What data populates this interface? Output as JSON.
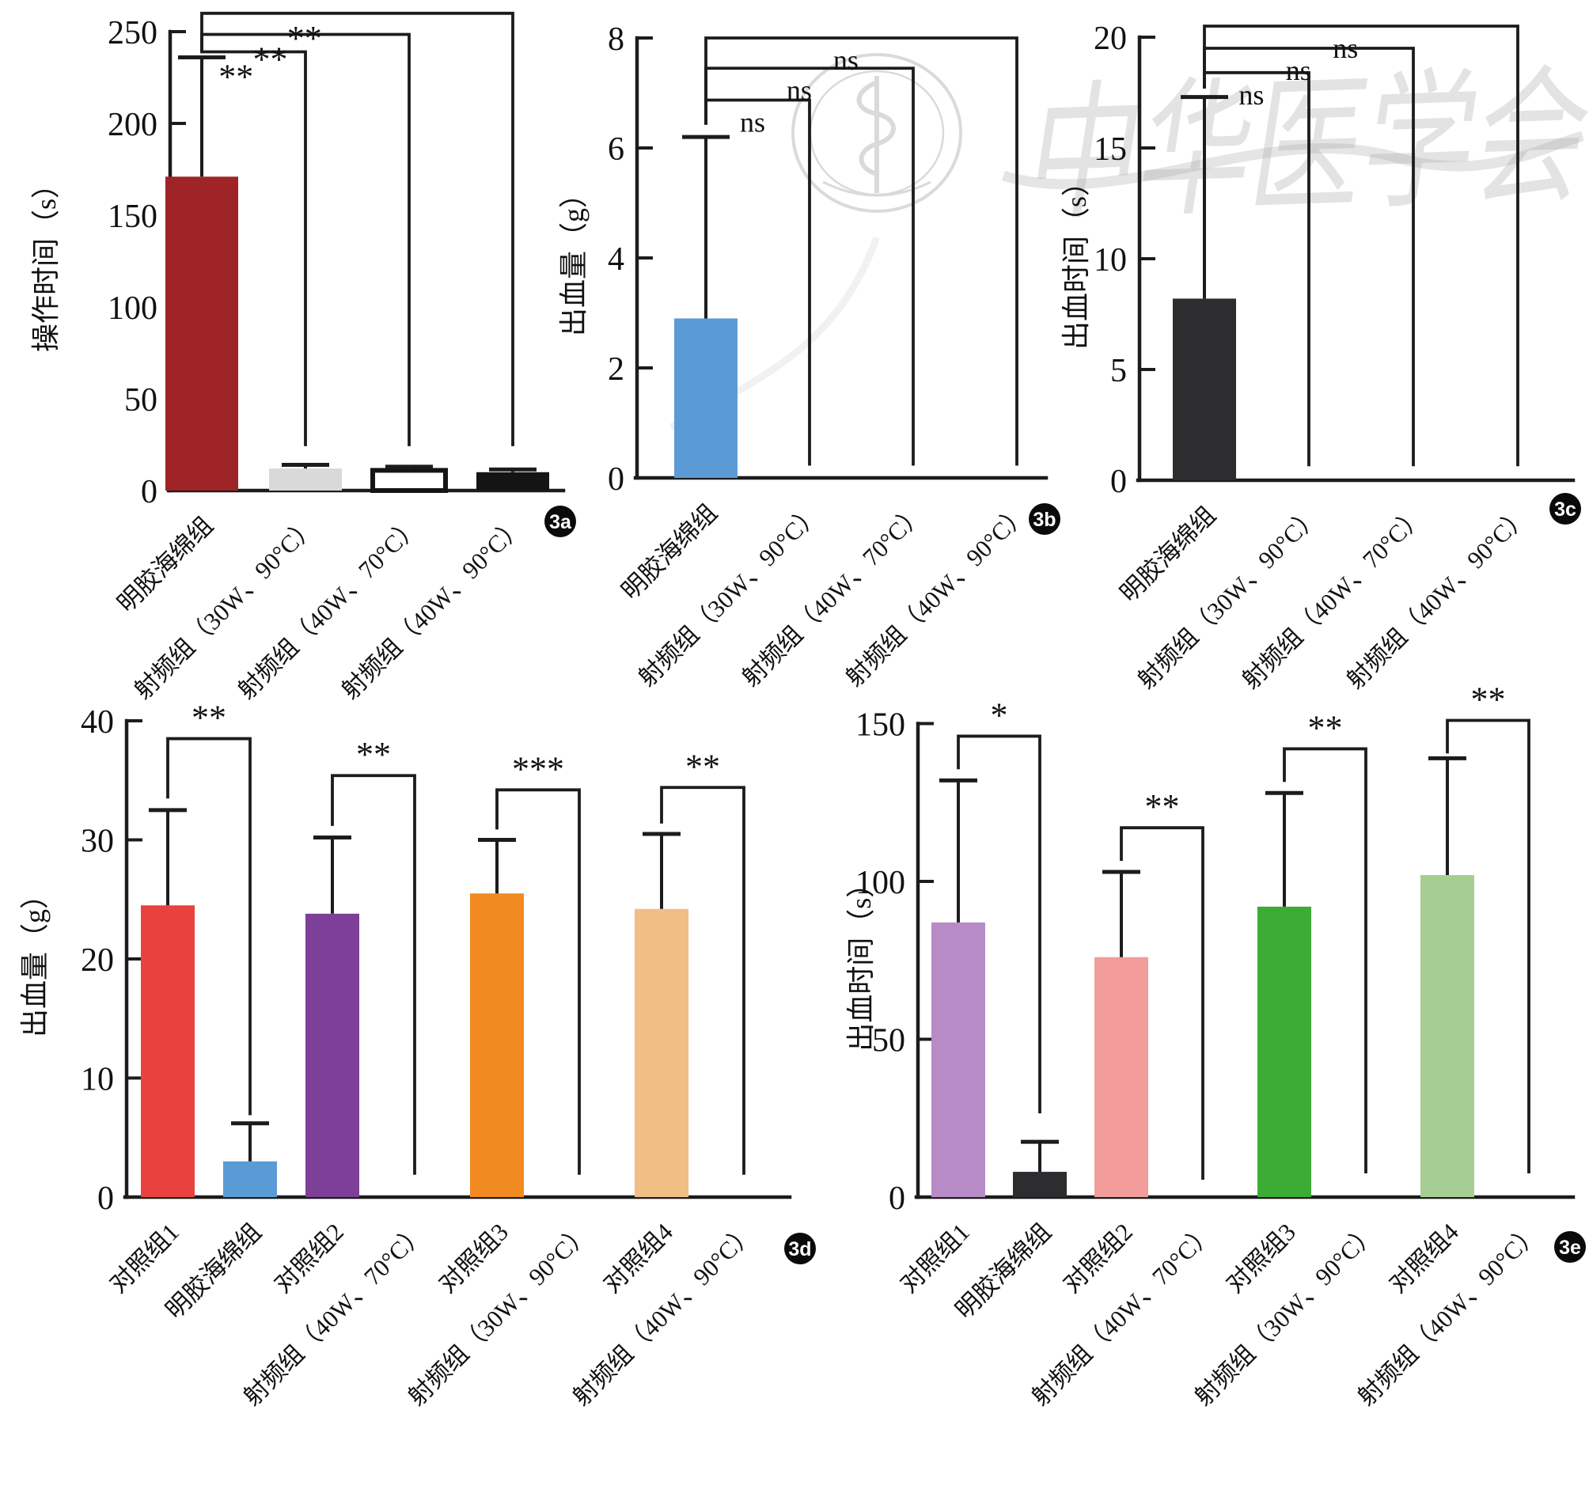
{
  "watermark": {
    "text": "中华医学会"
  },
  "chart_data": [
    {
      "id": "3a",
      "type": "bar",
      "ylabel": "操作时间（s）",
      "xlabel": "",
      "ylim": [
        0,
        250
      ],
      "yticks": [
        0,
        50,
        100,
        150,
        200,
        250
      ],
      "grid": false,
      "legend_position": "none",
      "categories": [
        "明胶海绵组",
        "射频组（30W、90°C）",
        "射频组（40W、70°C）",
        "射频组（40W、90°C）"
      ],
      "values": [
        171,
        12,
        11,
        10
      ],
      "error_tops": [
        236,
        14,
        13,
        11.5
      ],
      "colors": [
        "#9e2428",
        "#d9d9d9",
        "#ffffff",
        "#141414"
      ],
      "borders": [
        false,
        false,
        true,
        false
      ],
      "significance": [
        {
          "pair": [
            0,
            1
          ],
          "label": "**",
          "y": 239,
          "left_stop": 240,
          "right_stop": 25
        },
        {
          "pair": [
            0,
            2
          ],
          "label": "**",
          "y": 248.5,
          "left_stop": 240,
          "right_stop": 25
        },
        {
          "pair": [
            0,
            3
          ],
          "label": "**",
          "y": 260,
          "left_stop": 240,
          "right_stop": 25
        }
      ]
    },
    {
      "id": "3b",
      "type": "bar",
      "ylabel": "出血量（g）",
      "xlabel": "",
      "ylim": [
        0,
        8
      ],
      "yticks": [
        0,
        2,
        4,
        6,
        8
      ],
      "grid": false,
      "legend_position": "none",
      "categories": [
        "明胶海绵组",
        "射频组（30W、90°C）",
        "射频组（40W、70°C）",
        "射频组（40W、90°C）"
      ],
      "values": [
        2.9,
        0,
        0,
        0
      ],
      "error_tops": [
        6.2,
        null,
        null,
        null
      ],
      "colors": [
        "#5b9bd5",
        "",
        "",
        ""
      ],
      "borders": [
        false,
        false,
        false,
        false
      ],
      "significance": [
        {
          "pair": [
            0,
            1
          ],
          "label": "ns",
          "y": 6.87,
          "left_stop": 6.45,
          "right_stop": 0.25
        },
        {
          "pair": [
            0,
            2
          ],
          "label": "ns",
          "y": 7.45,
          "left_stop": 6.45,
          "right_stop": 0.25
        },
        {
          "pair": [
            0,
            3
          ],
          "label": "ns",
          "y": 8.0,
          "left_stop": 6.45,
          "right_stop": 0.25
        }
      ]
    },
    {
      "id": "3c",
      "type": "bar",
      "ylabel": "出血时间（s）",
      "xlabel": "",
      "ylim": [
        0,
        20
      ],
      "yticks": [
        0,
        5,
        10,
        15,
        20
      ],
      "grid": false,
      "legend_position": "none",
      "categories": [
        "明胶海绵组",
        "射频组（30W、90°C）",
        "射频组（40W、70°C）",
        "射频组（40W、90°C）"
      ],
      "values": [
        8.2,
        0,
        0,
        0
      ],
      "error_tops": [
        17.3,
        null,
        null,
        null
      ],
      "colors": [
        "#2d2d2f",
        "",
        "",
        ""
      ],
      "borders": [
        false,
        false,
        false,
        false
      ],
      "significance": [
        {
          "pair": [
            0,
            1
          ],
          "label": "ns",
          "y": 18.4,
          "left_stop": 17.75,
          "right_stop": 0.7
        },
        {
          "pair": [
            0,
            2
          ],
          "label": "ns",
          "y": 19.5,
          "left_stop": 17.75,
          "right_stop": 0.7
        },
        {
          "pair": [
            0,
            3
          ],
          "label": "ns",
          "y": 20.5,
          "left_stop": 17.75,
          "right_stop": 0.7
        }
      ]
    },
    {
      "id": "3d",
      "type": "bar",
      "ylabel": "出血量（g）",
      "xlabel": "",
      "ylim": [
        0,
        40
      ],
      "yticks": [
        0,
        10,
        20,
        30,
        40
      ],
      "grid": false,
      "legend_position": "none",
      "categories": [
        "对照组1",
        "明胶海绵组",
        "对照组2",
        "射频组（40W、70°C）",
        "对照组3",
        "射频组（30W、90°C）",
        "对照组4",
        "射频组（40W、90°C）"
      ],
      "values": [
        24.5,
        3,
        23.8,
        0,
        25.5,
        0,
        24.2,
        0
      ],
      "error_tops": [
        32.5,
        6.2,
        30.2,
        null,
        30,
        null,
        30.5,
        null
      ],
      "colors": [
        "#e8413e",
        "#5b9bd5",
        "#7d3f98",
        "",
        "#f08a21",
        "",
        "#f1be85",
        ""
      ],
      "borders": [
        false,
        false,
        false,
        false,
        false,
        false,
        false,
        false
      ],
      "significance": [
        {
          "pair": [
            0,
            1
          ],
          "label": "**",
          "y": 38.5,
          "left_stop": 33.6,
          "right_stop": 7
        },
        {
          "pair": [
            2,
            3
          ],
          "label": "**",
          "y": 35.4,
          "left_stop": 31.3,
          "right_stop": 2
        },
        {
          "pair": [
            4,
            5
          ],
          "label": "***",
          "y": 34.2,
          "left_stop": 31,
          "right_stop": 2
        },
        {
          "pair": [
            6,
            7
          ],
          "label": "**",
          "y": 34.4,
          "left_stop": 31.5,
          "right_stop": 2
        }
      ]
    },
    {
      "id": "3e",
      "type": "bar",
      "ylabel": "出血时间（s）",
      "xlabel": "",
      "ylim": [
        0,
        150
      ],
      "yticks": [
        0,
        50,
        100,
        150
      ],
      "grid": false,
      "legend_position": "none",
      "categories": [
        "对照组1",
        "明胶海绵组",
        "对照组2",
        "射频组（40W、70°C）",
        "对照组3",
        "射频组（30W、90°C）",
        "对照组4",
        "射频组（40W、90°C）"
      ],
      "values": [
        87,
        8,
        76,
        0,
        92,
        0,
        102,
        0
      ],
      "error_tops": [
        132,
        17.5,
        103,
        null,
        128,
        null,
        139,
        null
      ],
      "colors": [
        "#b78cc6",
        "#2d2d2f",
        "#f29c9c",
        "",
        "#3cac34",
        "",
        "#a6ce92",
        ""
      ],
      "borders": [
        false,
        false,
        false,
        false,
        false,
        false,
        false,
        false
      ],
      "significance": [
        {
          "pair": [
            0,
            1
          ],
          "label": "*",
          "y": 146,
          "left_stop": 136,
          "right_stop": 27
        },
        {
          "pair": [
            2,
            3
          ],
          "label": "**",
          "y": 117,
          "left_stop": 107,
          "right_stop": 6
        },
        {
          "pair": [
            4,
            5
          ],
          "label": "**",
          "y": 142,
          "left_stop": 132,
          "right_stop": 8
        },
        {
          "pair": [
            6,
            7
          ],
          "label": "**",
          "y": 151,
          "left_stop": 141,
          "right_stop": 8
        }
      ]
    }
  ]
}
